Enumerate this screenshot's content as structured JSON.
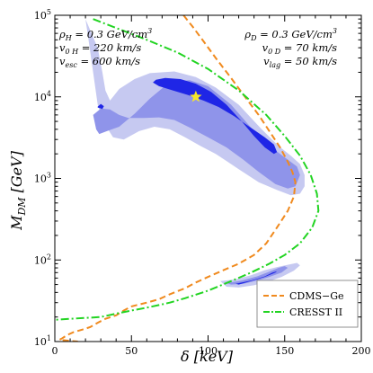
{
  "chart_data": {
    "type": "line",
    "xlabel": "δ   [keV]",
    "ylabel": "M_DM   [GeV]",
    "xlim": [
      0,
      200
    ],
    "ylim": [
      10,
      100000
    ],
    "yscale": "log",
    "x_ticks": [
      0,
      50,
      100,
      150,
      200
    ],
    "y_ticks": [
      {
        "value": 10,
        "base": "10",
        "exp": "1"
      },
      {
        "value": 100,
        "base": "10",
        "exp": "2"
      },
      {
        "value": 1000,
        "base": "10",
        "exp": "3"
      },
      {
        "value": 10000,
        "base": "10",
        "exp": "4"
      },
      {
        "value": 100000,
        "base": "10",
        "exp": "5"
      }
    ],
    "annotations": {
      "left": [
        {
          "main": "ρ",
          "sub": "H",
          "rest": " = 0.3 GeV/cm",
          "sup": "3"
        },
        {
          "main": "v",
          "sub": "0 H",
          "rest": " = 220 km/s",
          "sup": ""
        },
        {
          "main": "v",
          "sub": "esc",
          "rest": " = 600 km/s",
          "sup": ""
        }
      ],
      "right": [
        {
          "main": "ρ",
          "sub": "D",
          "rest": " = 0.3 GeV/cm",
          "sup": "3"
        },
        {
          "main": "v",
          "sub": "0 D",
          "rest": " = 70 km/s",
          "sup": ""
        },
        {
          "main": "v",
          "sub": "lag",
          "rest": " = 50 km/s",
          "sup": ""
        }
      ]
    },
    "best_fit": {
      "x": 92,
      "y": 10000,
      "color": "#f5e62a"
    },
    "series": [
      {
        "name": "CDMS-Ge",
        "style": "dashed",
        "color": "#f08a1e",
        "points": [
          [
            84,
            100000
          ],
          [
            90,
            72000
          ],
          [
            97,
            48000
          ],
          [
            105,
            30000
          ],
          [
            115,
            17000
          ],
          [
            125,
            9500
          ],
          [
            133,
            6000
          ],
          [
            140,
            3800
          ],
          [
            147,
            2400
          ],
          [
            152,
            1600
          ],
          [
            155,
            1200
          ],
          [
            157,
            900
          ],
          [
            156,
            600
          ],
          [
            152,
            400
          ],
          [
            145,
            250
          ],
          [
            138,
            160
          ],
          [
            130,
            115
          ],
          [
            120,
            90
          ],
          [
            110,
            75
          ],
          [
            100,
            62
          ],
          [
            92,
            53
          ],
          [
            85,
            45
          ],
          [
            75,
            38
          ],
          [
            68,
            33
          ],
          [
            60,
            30
          ],
          [
            50,
            27
          ],
          [
            45,
            24
          ],
          [
            40,
            21
          ],
          [
            33,
            19
          ],
          [
            28,
            17
          ],
          [
            23,
            15
          ],
          [
            18,
            14
          ],
          [
            12,
            13
          ],
          [
            8,
            12
          ],
          [
            5,
            11
          ],
          [
            3,
            10.5
          ],
          [
            15,
            10
          ]
        ]
      },
      {
        "name": "CRESST II",
        "style": "dash-dot",
        "color": "#22d422",
        "points": [
          [
            25,
            90000
          ],
          [
            40,
            70000
          ],
          [
            60,
            50000
          ],
          [
            80,
            35000
          ],
          [
            100,
            22000
          ],
          [
            120,
            12000
          ],
          [
            138,
            6000
          ],
          [
            150,
            3300
          ],
          [
            160,
            1900
          ],
          [
            167,
            1100
          ],
          [
            171,
            650
          ],
          [
            172,
            400
          ],
          [
            168,
            250
          ],
          [
            160,
            160
          ],
          [
            150,
            115
          ],
          [
            140,
            90
          ],
          [
            128,
            70
          ],
          [
            115,
            55
          ],
          [
            100,
            42
          ],
          [
            85,
            34
          ],
          [
            75,
            30
          ],
          [
            68,
            28
          ],
          [
            60,
            26
          ],
          [
            50,
            24
          ],
          [
            40,
            22
          ],
          [
            35,
            21
          ],
          [
            30,
            20
          ],
          [
            20,
            19.5
          ],
          [
            10,
            19
          ],
          [
            0,
            18.5
          ]
        ]
      }
    ],
    "regions": {
      "colors": {
        "outer": "#c6c9f1",
        "middle": "#8f94ea",
        "inner": "#1f26e6"
      },
      "levels": [
        {
          "level": "outer",
          "contours": [
            [
              [
                20,
                90000
              ],
              [
                28,
                40000
              ],
              [
                31,
                20000
              ],
              [
                33,
                12000
              ],
              [
                36,
                9000
              ],
              [
                42,
                12500
              ],
              [
                52,
                16500
              ],
              [
                62,
                19500
              ],
              [
                78,
                20500
              ],
              [
                92,
                17500
              ],
              [
                105,
                13000
              ],
              [
                120,
                8000
              ],
              [
                135,
                4000
              ],
              [
                146,
                2500
              ],
              [
                154,
                1900
              ],
              [
                160,
                1500
              ],
              [
                163,
                1100
              ],
              [
                163,
                800
              ],
              [
                160,
                650
              ],
              [
                154,
                620
              ],
              [
                145,
                720
              ],
              [
                133,
                900
              ],
              [
                120,
                1300
              ],
              [
                105,
                2000
              ],
              [
                95,
                2500
              ],
              [
                85,
                3200
              ],
              [
                75,
                4000
              ],
              [
                65,
                4300
              ],
              [
                55,
                3800
              ],
              [
                45,
                3000
              ],
              [
                38,
                3200
              ],
              [
                32,
                4800
              ],
              [
                28,
                8000
              ],
              [
                25,
                20000
              ],
              [
                22,
                50000
              ],
              [
                20,
                90000
              ]
            ],
            [
              [
                108,
                55
              ],
              [
                118,
                58
              ],
              [
                128,
                65
              ],
              [
                137,
                75
              ],
              [
                145,
                82
              ],
              [
                153,
                88
              ],
              [
                158,
                92
              ],
              [
                160,
                86
              ],
              [
                156,
                74
              ],
              [
                148,
                62
              ],
              [
                140,
                55
              ],
              [
                130,
                49
              ],
              [
                120,
                46
              ],
              [
                112,
                47
              ],
              [
                108,
                55
              ]
            ]
          ]
        },
        {
          "level": "middle",
          "contours": [
            [
              [
                25,
                6000
              ],
              [
                27,
                4000
              ],
              [
                29,
                3500
              ],
              [
                34,
                3800
              ],
              [
                42,
                4300
              ],
              [
                52,
                6200
              ],
              [
                62,
                9500
              ],
              [
                75,
                15200
              ],
              [
                88,
                16000
              ],
              [
                100,
                13500
              ],
              [
                115,
                8000
              ],
              [
                128,
                4200
              ],
              [
                140,
                2500
              ],
              [
                152,
                1700
              ],
              [
                158,
                1400
              ],
              [
                160,
                1100
              ],
              [
                157,
                800
              ],
              [
                152,
                750
              ],
              [
                144,
                850
              ],
              [
                133,
                1200
              ],
              [
                123,
                1700
              ],
              [
                112,
                2400
              ],
              [
                100,
                3200
              ],
              [
                88,
                4200
              ],
              [
                78,
                5200
              ],
              [
                68,
                5600
              ],
              [
                58,
                5500
              ],
              [
                48,
                5500
              ],
              [
                42,
                6000
              ],
              [
                36,
                7000
              ],
              [
                30,
                7200
              ],
              [
                25,
                6000
              ]
            ],
            [
              [
                112,
                52
              ],
              [
                122,
                56
              ],
              [
                132,
                63
              ],
              [
                140,
                72
              ],
              [
                146,
                80
              ],
              [
                150,
                84
              ],
              [
                152,
                80
              ],
              [
                148,
                70
              ],
              [
                140,
                62
              ],
              [
                132,
                56
              ],
              [
                123,
                51
              ],
              [
                115,
                50
              ],
              [
                112,
                52
              ]
            ]
          ]
        },
        {
          "level": "inner",
          "contours": [
            [
              [
                66,
                16200
              ],
              [
                72,
                17000
              ],
              [
                82,
                16500
              ],
              [
                92,
                14500
              ],
              [
                102,
                11500
              ],
              [
                112,
                8000
              ],
              [
                122,
                5000
              ],
              [
                130,
                3300
              ],
              [
                137,
                2400
              ],
              [
                143,
                2000
              ],
              [
                145,
                2100
              ],
              [
                143,
                2600
              ],
              [
                137,
                3200
              ],
              [
                127,
                4300
              ],
              [
                117,
                5800
              ],
              [
                107,
                7500
              ],
              [
                97,
                9000
              ],
              [
                87,
                10500
              ],
              [
                77,
                12000
              ],
              [
                68,
                13500
              ],
              [
                64,
                15000
              ],
              [
                66,
                16200
              ]
            ],
            [
              [
                28,
                7600
              ],
              [
                30,
                8200
              ],
              [
                32,
                7700
              ],
              [
                31,
                7100
              ],
              [
                28,
                7400
              ],
              [
                28,
                7600
              ]
            ],
            [
              [
                118,
                51
              ],
              [
                128,
                56
              ],
              [
                137,
                63
              ],
              [
                142,
                70
              ],
              [
                145,
                73
              ],
              [
                144,
                70
              ],
              [
                137,
                62
              ],
              [
                128,
                55
              ],
              [
                120,
                50
              ],
              [
                118,
                51
              ]
            ]
          ]
        }
      ]
    },
    "legend": {
      "position": "bottom-right",
      "entries": [
        {
          "label": "CDMS−Ge",
          "color": "#f08a1e",
          "style": "dashed"
        },
        {
          "label": "CRESST II",
          "color": "#22d422",
          "style": "dash-dot"
        }
      ]
    },
    "grid": false
  }
}
